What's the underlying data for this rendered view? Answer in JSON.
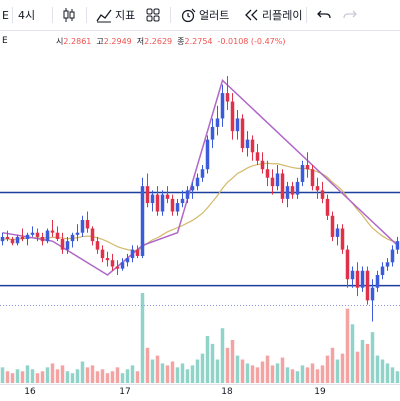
{
  "toolbar": {
    "symbol": "E",
    "interval": "4시",
    "indicators_label": "지표",
    "alert_label": "얼러트",
    "replay_label": "리플레이"
  },
  "legend": {
    "open_label": "시",
    "open": "2.2861",
    "high_label": "고",
    "high": "2.2949",
    "low_label": "저",
    "low": "2.2629",
    "close_label": "종",
    "close": "2.2754",
    "change": "-0.0108 (-0.47%)"
  },
  "colors": {
    "up": "#26a69a",
    "down": "#ef5350",
    "candle_up": "#3b5bdb",
    "candle_down": "#e0314b",
    "ma": "#d4b86a",
    "trendline": "#b066c8",
    "hline": "#1c3f9e",
    "vol_up": "#8fd3c9",
    "vol_down": "#f4a3a3"
  },
  "x_axis": {
    "labels": [
      "16",
      "17",
      "18",
      "19"
    ]
  },
  "chart_data": {
    "type": "candlestick",
    "y_range": [
      2.1,
      2.75
    ],
    "candles": [
      [
        2.31,
        2.33,
        2.3,
        2.32
      ],
      [
        2.32,
        2.335,
        2.31,
        2.315
      ],
      [
        2.315,
        2.32,
        2.3,
        2.305
      ],
      [
        2.305,
        2.325,
        2.3,
        2.32
      ],
      [
        2.32,
        2.34,
        2.31,
        2.315
      ],
      [
        2.315,
        2.33,
        2.3,
        2.325
      ],
      [
        2.325,
        2.345,
        2.32,
        2.33
      ],
      [
        2.33,
        2.34,
        2.31,
        2.32
      ],
      [
        2.32,
        2.33,
        2.3,
        2.31
      ],
      [
        2.31,
        2.34,
        2.305,
        2.335
      ],
      [
        2.335,
        2.36,
        2.32,
        2.33
      ],
      [
        2.33,
        2.345,
        2.31,
        2.315
      ],
      [
        2.315,
        2.33,
        2.28,
        2.29
      ],
      [
        2.29,
        2.32,
        2.28,
        2.31
      ],
      [
        2.31,
        2.33,
        2.295,
        2.325
      ],
      [
        2.325,
        2.35,
        2.31,
        2.33
      ],
      [
        2.33,
        2.37,
        2.32,
        2.36
      ],
      [
        2.36,
        2.38,
        2.33,
        2.34
      ],
      [
        2.34,
        2.345,
        2.3,
        2.31
      ],
      [
        2.31,
        2.32,
        2.28,
        2.29
      ],
      [
        2.29,
        2.3,
        2.26,
        2.27
      ],
      [
        2.27,
        2.285,
        2.25,
        2.265
      ],
      [
        2.265,
        2.28,
        2.24,
        2.25
      ],
      [
        2.25,
        2.265,
        2.23,
        2.245
      ],
      [
        2.245,
        2.27,
        2.24,
        2.26
      ],
      [
        2.26,
        2.28,
        2.25,
        2.27
      ],
      [
        2.27,
        2.3,
        2.26,
        2.29
      ],
      [
        2.29,
        2.3,
        2.27,
        2.275
      ],
      [
        2.275,
        2.46,
        2.27,
        2.44
      ],
      [
        2.44,
        2.47,
        2.39,
        2.4
      ],
      [
        2.4,
        2.43,
        2.38,
        2.42
      ],
      [
        2.42,
        2.44,
        2.37,
        2.38
      ],
      [
        2.38,
        2.43,
        2.37,
        2.42
      ],
      [
        2.42,
        2.44,
        2.4,
        2.41
      ],
      [
        2.41,
        2.42,
        2.37,
        2.38
      ],
      [
        2.38,
        2.41,
        2.37,
        2.4
      ],
      [
        2.4,
        2.43,
        2.39,
        2.41
      ],
      [
        2.41,
        2.44,
        2.4,
        2.43
      ],
      [
        2.43,
        2.45,
        2.41,
        2.44
      ],
      [
        2.44,
        2.47,
        2.43,
        2.46
      ],
      [
        2.46,
        2.49,
        2.45,
        2.48
      ],
      [
        2.48,
        2.56,
        2.47,
        2.55
      ],
      [
        2.55,
        2.6,
        2.53,
        2.58
      ],
      [
        2.58,
        2.63,
        2.56,
        2.6
      ],
      [
        2.6,
        2.68,
        2.58,
        2.66
      ],
      [
        2.66,
        2.7,
        2.62,
        2.64
      ],
      [
        2.64,
        2.66,
        2.55,
        2.57
      ],
      [
        2.57,
        2.62,
        2.55,
        2.6
      ],
      [
        2.6,
        2.61,
        2.52,
        2.53
      ],
      [
        2.53,
        2.57,
        2.51,
        2.55
      ],
      [
        2.55,
        2.56,
        2.5,
        2.52
      ],
      [
        2.52,
        2.54,
        2.49,
        2.5
      ],
      [
        2.5,
        2.52,
        2.47,
        2.48
      ],
      [
        2.48,
        2.5,
        2.44,
        2.46
      ],
      [
        2.46,
        2.48,
        2.42,
        2.44
      ],
      [
        2.44,
        2.49,
        2.43,
        2.47
      ],
      [
        2.47,
        2.48,
        2.4,
        2.41
      ],
      [
        2.41,
        2.45,
        2.39,
        2.44
      ],
      [
        2.44,
        2.45,
        2.41,
        2.42
      ],
      [
        2.42,
        2.46,
        2.41,
        2.45
      ],
      [
        2.45,
        2.5,
        2.44,
        2.49
      ],
      [
        2.49,
        2.52,
        2.46,
        2.48
      ],
      [
        2.48,
        2.49,
        2.43,
        2.44
      ],
      [
        2.44,
        2.46,
        2.41,
        2.43
      ],
      [
        2.43,
        2.45,
        2.4,
        2.41
      ],
      [
        2.41,
        2.42,
        2.36,
        2.37
      ],
      [
        2.37,
        2.38,
        2.31,
        2.32
      ],
      [
        2.32,
        2.35,
        2.3,
        2.34
      ],
      [
        2.34,
        2.35,
        2.28,
        2.29
      ],
      [
        2.29,
        2.3,
        2.2,
        2.22
      ],
      [
        2.22,
        2.25,
        2.2,
        2.24
      ],
      [
        2.24,
        2.26,
        2.18,
        2.2
      ],
      [
        2.2,
        2.25,
        2.19,
        2.24
      ],
      [
        2.24,
        2.25,
        2.16,
        2.17
      ],
      [
        2.17,
        2.22,
        2.12,
        2.2
      ],
      [
        2.2,
        2.24,
        2.19,
        2.23
      ],
      [
        2.23,
        2.26,
        2.22,
        2.25
      ],
      [
        2.25,
        2.27,
        2.24,
        2.26
      ],
      [
        2.26,
        2.3,
        2.25,
        2.29
      ],
      [
        2.29,
        2.32,
        2.28,
        2.31
      ]
    ],
    "volumes": [
      8,
      6,
      5,
      7,
      6,
      9,
      7,
      5,
      6,
      8,
      10,
      7,
      9,
      6,
      5,
      7,
      11,
      8,
      9,
      6,
      7,
      5,
      6,
      8,
      5,
      7,
      9,
      6,
      46,
      18,
      12,
      14,
      10,
      9,
      11,
      8,
      10,
      7,
      9,
      12,
      15,
      24,
      20,
      12,
      28,
      18,
      22,
      14,
      12,
      10,
      9,
      8,
      11,
      14,
      9,
      10,
      13,
      8,
      7,
      6,
      9,
      8,
      10,
      7,
      9,
      14,
      18,
      12,
      15,
      38,
      30,
      16,
      22,
      20,
      26,
      14,
      12,
      10,
      8,
      6
    ],
    "ma": [
      2.315,
      2.315,
      2.314,
      2.315,
      2.316,
      2.317,
      2.318,
      2.318,
      2.317,
      2.318,
      2.319,
      2.319,
      2.317,
      2.316,
      2.317,
      2.318,
      2.321,
      2.322,
      2.321,
      2.318,
      2.314,
      2.309,
      2.303,
      2.297,
      2.293,
      2.29,
      2.288,
      2.286,
      2.297,
      2.305,
      2.313,
      2.318,
      2.325,
      2.332,
      2.337,
      2.342,
      2.347,
      2.353,
      2.359,
      2.367,
      2.376,
      2.389,
      2.403,
      2.418,
      2.435,
      2.449,
      2.459,
      2.47,
      2.476,
      2.483,
      2.488,
      2.491,
      2.493,
      2.494,
      2.493,
      2.493,
      2.49,
      2.487,
      2.484,
      2.482,
      2.482,
      2.481,
      2.478,
      2.474,
      2.469,
      2.461,
      2.449,
      2.44,
      2.429,
      2.413,
      2.399,
      2.384,
      2.371,
      2.355,
      2.341,
      2.331,
      2.322,
      2.315,
      2.31,
      2.307
    ],
    "horizontal_levels": [
      2.425,
      2.205
    ],
    "dotted_level": 2.158
  }
}
